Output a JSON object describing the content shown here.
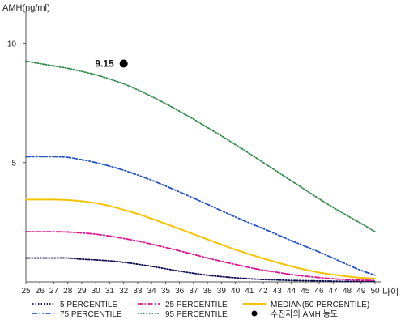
{
  "chart_data": {
    "type": "line",
    "ylabel": "AMH(ng/ml)",
    "xlabel": "나이",
    "x": [
      25,
      26,
      27,
      28,
      29,
      30,
      31,
      32,
      33,
      34,
      35,
      36,
      37,
      38,
      39,
      40,
      41,
      42,
      43,
      44,
      45,
      46,
      47,
      48,
      49,
      50
    ],
    "x_ticks": [
      "25",
      "26",
      "27",
      "28",
      "29",
      "30",
      "31",
      "32",
      "33",
      "34",
      "35",
      "36",
      "37",
      "38",
      "39",
      "40",
      "41",
      "42",
      "43",
      "44",
      "45",
      "46",
      "47",
      "48",
      "49",
      "50"
    ],
    "y_ticks": [
      "5",
      "10"
    ],
    "xlim": [
      25,
      50
    ],
    "ylim": [
      0,
      11
    ],
    "grid": false,
    "legend_position": "bottom",
    "series": [
      {
        "name": "5 PERCENTILE",
        "color": "#0a0a50",
        "dash": "dot",
        "values": [
          1.0,
          1.0,
          1.0,
          1.0,
          0.95,
          0.92,
          0.88,
          0.82,
          0.74,
          0.65,
          0.55,
          0.45,
          0.36,
          0.28,
          0.22,
          0.17,
          0.13,
          0.1,
          0.08,
          0.06,
          0.05,
          0.04,
          0.03,
          0.02,
          0.02,
          0.02
        ]
      },
      {
        "name": "25 PERCENTILE",
        "color": "#e0138c",
        "dash": "dashdot",
        "values": [
          2.1,
          2.1,
          2.1,
          2.09,
          2.05,
          2.0,
          1.92,
          1.82,
          1.71,
          1.58,
          1.44,
          1.3,
          1.15,
          1.0,
          0.86,
          0.73,
          0.6,
          0.49,
          0.4,
          0.31,
          0.24,
          0.18,
          0.13,
          0.09,
          0.07,
          0.06
        ]
      },
      {
        "name": "MEDIAN(50 PERCENTILE)",
        "color": "#f4c200",
        "dash": "solid",
        "values": [
          3.45,
          3.45,
          3.45,
          3.43,
          3.38,
          3.3,
          3.18,
          3.02,
          2.85,
          2.65,
          2.44,
          2.22,
          2.0,
          1.78,
          1.56,
          1.35,
          1.16,
          0.98,
          0.81,
          0.65,
          0.51,
          0.39,
          0.3,
          0.23,
          0.17,
          0.14
        ]
      },
      {
        "name": "75 PERCENTILE",
        "color": "#2350c8",
        "dash": "dashdotdot",
        "values": [
          5.25,
          5.25,
          5.25,
          5.22,
          5.12,
          5.0,
          4.85,
          4.68,
          4.48,
          4.26,
          4.02,
          3.77,
          3.51,
          3.25,
          2.98,
          2.72,
          2.47,
          2.23,
          1.98,
          1.73,
          1.49,
          1.25,
          0.99,
          0.73,
          0.48,
          0.28
        ]
      },
      {
        "name": "95 PERCENTILE",
        "color": "#2e8a4a",
        "dash": "dot",
        "values": [
          9.25,
          9.15,
          9.05,
          8.95,
          8.82,
          8.68,
          8.5,
          8.3,
          8.05,
          7.77,
          7.47,
          7.15,
          6.82,
          6.47,
          6.12,
          5.75,
          5.38,
          5.0,
          4.62,
          4.24,
          3.86,
          3.48,
          3.12,
          2.78,
          2.45,
          2.1
        ]
      }
    ],
    "points": [
      {
        "name": "수진자의 AMH 농도",
        "x": 32,
        "y": 9.15,
        "label": "9.15",
        "color": "#000000"
      }
    ]
  }
}
